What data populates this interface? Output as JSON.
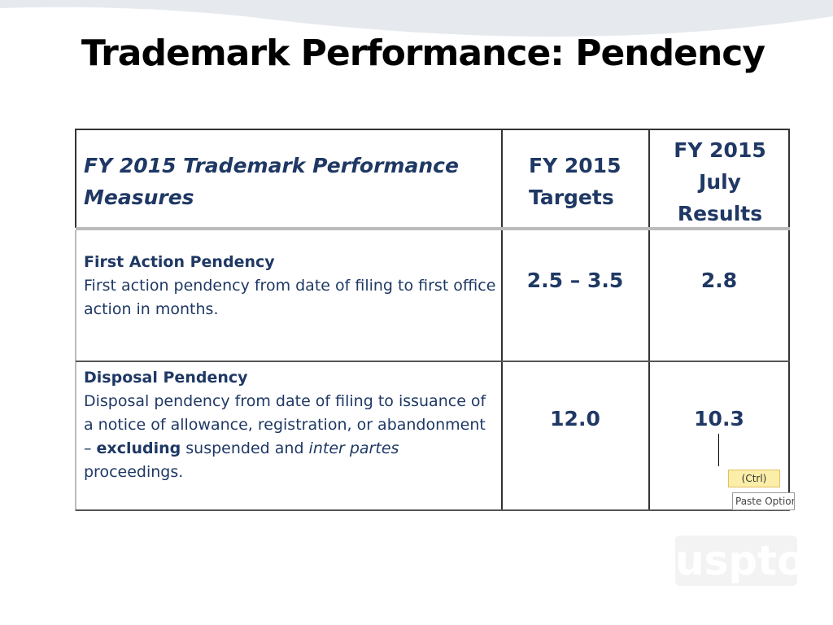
{
  "title": "Trademark Performance: Pendency",
  "table": {
    "header": [
      "FY 2015 Trademark Performance Measures",
      "FY 2015 Targets",
      "FY 2015 July Results"
    ],
    "rows": [
      {
        "name": "First Action Pendency",
        "description": [
          "First action pendency from date of filing to first office action in months."
        ],
        "target": "2.5 – 3.5",
        "result": "2.8"
      },
      {
        "name": "Disposal Pendency",
        "description": [
          "Disposal pendency from date of filing to issuance of a notice of allowance, registration, or abandonment – ",
          "excluding",
          " suspended and ",
          "inter partes",
          " proceedings."
        ],
        "target": "12.0",
        "result": "10.3"
      }
    ]
  },
  "paste_options": {
    "button": "(Ctrl)",
    "tooltip": "Paste Options"
  },
  "logo": "uspto"
}
